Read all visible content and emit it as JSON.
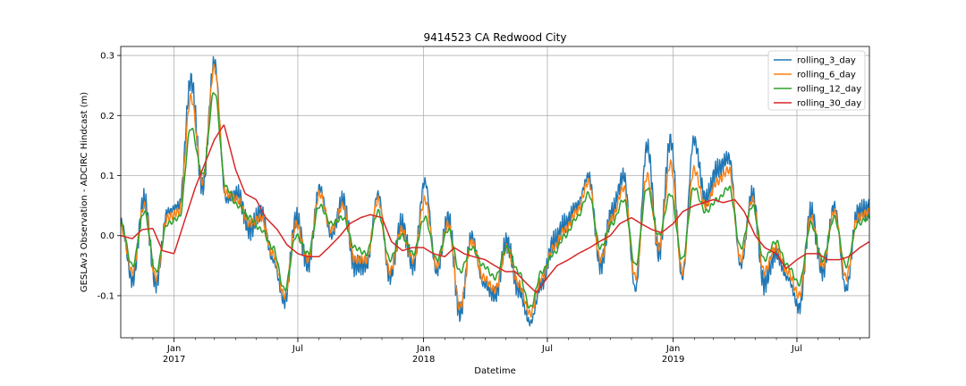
{
  "chart_data": {
    "type": "line",
    "title": "9414523 CA Redwood City",
    "xlabel": "Datetime",
    "ylabel": "GESLAv3 Observation - ADCIRC Hindcast (m)",
    "xlim": [
      "2016-10-15",
      "2019-10-15"
    ],
    "ylim": [
      -0.17,
      0.315
    ],
    "yticks": [
      "-0.1",
      "0.0",
      "0.1",
      "0.2",
      "0.3"
    ],
    "ytick_values": [
      -0.1,
      0.0,
      0.1,
      0.2,
      0.3
    ],
    "xticks": [
      {
        "date": "2017-01-01",
        "label": "Jan",
        "year": "2017"
      },
      {
        "date": "2017-07-01",
        "label": "Jul",
        "year": ""
      },
      {
        "date": "2018-01-01",
        "label": "Jan",
        "year": "2018"
      },
      {
        "date": "2018-07-01",
        "label": "Jul",
        "year": ""
      },
      {
        "date": "2019-01-01",
        "label": "Jan",
        "year": "2019"
      },
      {
        "date": "2019-07-01",
        "label": "Jul",
        "year": ""
      }
    ],
    "grid": true,
    "legend_position": "top-right",
    "series": [
      {
        "name": "rolling_3_day",
        "color": "#1f77b4"
      },
      {
        "name": "rolling_6_day",
        "color": "#ff7f0e"
      },
      {
        "name": "rolling_12_day",
        "color": "#2ca02c"
      },
      {
        "name": "rolling_30_day",
        "color": "#d62728"
      }
    ],
    "trend_x": [
      "2016-10-15",
      "2016-11-01",
      "2016-11-15",
      "2016-12-01",
      "2016-12-15",
      "2017-01-01",
      "2017-01-15",
      "2017-02-01",
      "2017-02-15",
      "2017-03-01",
      "2017-03-15",
      "2017-04-01",
      "2017-04-15",
      "2017-05-01",
      "2017-05-15",
      "2017-06-01",
      "2017-06-15",
      "2017-07-01",
      "2017-07-15",
      "2017-08-01",
      "2017-08-15",
      "2017-09-01",
      "2017-09-15",
      "2017-10-01",
      "2017-10-15",
      "2017-11-01",
      "2017-11-15",
      "2017-12-01",
      "2017-12-15",
      "2018-01-01",
      "2018-01-15",
      "2018-02-01",
      "2018-02-15",
      "2018-03-01",
      "2018-03-15",
      "2018-04-01",
      "2018-04-15",
      "2018-05-01",
      "2018-05-15",
      "2018-06-01",
      "2018-06-15",
      "2018-07-01",
      "2018-07-15",
      "2018-08-01",
      "2018-08-15",
      "2018-09-01",
      "2018-09-15",
      "2018-10-01",
      "2018-10-15",
      "2018-11-01",
      "2018-11-15",
      "2018-12-01",
      "2018-12-15",
      "2019-01-01",
      "2019-01-15",
      "2019-02-01",
      "2019-02-15",
      "2019-03-01",
      "2019-03-15",
      "2019-04-01",
      "2019-04-15",
      "2019-05-01",
      "2019-05-15",
      "2019-06-01",
      "2019-06-15",
      "2019-07-01",
      "2019-07-15",
      "2019-08-01",
      "2019-08-15",
      "2019-09-01",
      "2019-09-15",
      "2019-10-01",
      "2019-10-15"
    ],
    "rolling_30_day": [
      0.0,
      -0.005,
      0.01,
      0.012,
      -0.025,
      -0.03,
      0.02,
      0.08,
      0.12,
      0.16,
      0.185,
      0.11,
      0.07,
      0.06,
      0.03,
      0.01,
      -0.015,
      -0.03,
      -0.035,
      -0.035,
      -0.02,
      0.0,
      0.02,
      0.03,
      0.035,
      0.03,
      -0.01,
      -0.025,
      -0.02,
      -0.02,
      -0.03,
      -0.035,
      -0.02,
      -0.03,
      -0.035,
      -0.04,
      -0.05,
      -0.06,
      -0.06,
      -0.08,
      -0.095,
      -0.07,
      -0.05,
      -0.04,
      -0.03,
      -0.02,
      -0.01,
      0.0,
      0.02,
      0.03,
      0.02,
      0.01,
      0.005,
      0.02,
      0.04,
      0.05,
      0.055,
      0.06,
      0.055,
      0.06,
      0.04,
      0.0,
      -0.02,
      -0.03,
      -0.055,
      -0.04,
      -0.03,
      -0.03,
      -0.04,
      -0.04,
      -0.035,
      -0.02,
      -0.01
    ],
    "rolling_12_day": [
      0.02,
      -0.05,
      0.04,
      -0.06,
      0.02,
      0.03,
      0.18,
      0.1,
      0.24,
      0.08,
      0.05,
      0.03,
      0.01,
      -0.02,
      -0.09,
      0.0,
      -0.03,
      0.05,
      0.02,
      0.03,
      -0.02,
      -0.03,
      0.04,
      -0.04,
      0.0,
      -0.03,
      0.03,
      -0.04,
      0.01,
      -0.06,
      -0.02,
      -0.05,
      -0.07,
      -0.02,
      -0.06,
      -0.12,
      -0.06,
      -0.03,
      0.0,
      0.03,
      0.07,
      -0.02,
      0.02,
      0.06,
      -0.05,
      0.08,
      0.0,
      0.07,
      -0.04,
      0.08,
      0.04,
      0.06,
      0.08,
      -0.02,
      0.05,
      -0.04,
      -0.01,
      -0.05,
      -0.08,
      0.02,
      -0.04,
      0.03,
      -0.05,
      0.02,
      0.03
    ],
    "rolling_6_day": [
      0.015,
      -0.06,
      0.05,
      -0.07,
      0.03,
      0.04,
      0.23,
      0.09,
      0.28,
      0.07,
      0.06,
      0.02,
      0.03,
      -0.03,
      -0.1,
      0.02,
      -0.04,
      0.07,
      0.01,
      0.05,
      -0.04,
      -0.04,
      0.06,
      -0.06,
      0.01,
      -0.04,
      0.06,
      -0.05,
      0.02,
      -0.12,
      -0.01,
      -0.07,
      -0.09,
      -0.02,
      -0.08,
      -0.13,
      -0.07,
      -0.02,
      0.01,
      0.04,
      0.09,
      -0.04,
      0.03,
      0.08,
      -0.07,
      0.1,
      -0.02,
      0.12,
      -0.06,
      0.11,
      0.05,
      0.09,
      0.11,
      -0.04,
      0.06,
      -0.06,
      -0.02,
      -0.06,
      -0.1,
      0.03,
      -0.05,
      0.04,
      -0.07,
      0.03,
      0.04
    ],
    "rolling_3_day": [
      0.025,
      -0.075,
      0.06,
      -0.08,
      0.04,
      0.05,
      0.26,
      0.08,
      0.29,
      0.06,
      0.07,
      0.01,
      0.04,
      -0.04,
      -0.11,
      0.03,
      -0.05,
      0.08,
      0.0,
      0.06,
      -0.05,
      -0.05,
      0.07,
      -0.07,
      0.02,
      -0.05,
      0.09,
      -0.06,
      0.03,
      -0.13,
      0.0,
      -0.08,
      -0.1,
      -0.01,
      -0.09,
      -0.145,
      -0.08,
      -0.01,
      0.02,
      0.05,
      0.1,
      -0.05,
      0.04,
      0.1,
      -0.09,
      0.15,
      -0.03,
      0.16,
      -0.07,
      0.16,
      0.06,
      0.11,
      0.13,
      -0.05,
      0.07,
      -0.08,
      -0.03,
      -0.07,
      -0.12,
      0.04,
      -0.06,
      0.05,
      -0.09,
      0.04,
      0.045
    ]
  }
}
